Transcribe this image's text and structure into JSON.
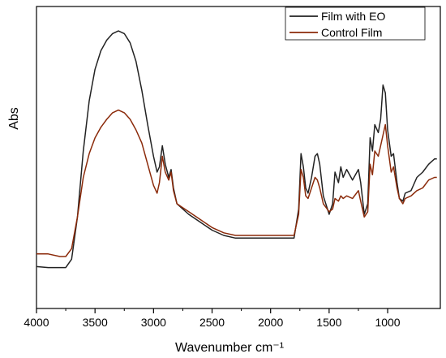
{
  "chart_data": {
    "type": "line",
    "title": "",
    "xlabel": "Wavenumber cm⁻¹",
    "ylabel": "Abs",
    "xlim": [
      4000,
      550
    ],
    "ylim": [
      0,
      1
    ],
    "x_reversed": true,
    "x_ticks": [
      4000,
      3500,
      3000,
      2500,
      2000,
      1500,
      1000
    ],
    "x_tick_labels": [
      "4000",
      "3500",
      "3000",
      "2500",
      "2000",
      "1500",
      "1000"
    ],
    "y_ticks_shown": false,
    "grid": false,
    "legend_position": "top-right",
    "series": [
      {
        "name": "Film with EO",
        "color": "#222222",
        "points": [
          [
            4000,
            0.082
          ],
          [
            3900,
            0.078
          ],
          [
            3800,
            0.078
          ],
          [
            3750,
            0.078
          ],
          [
            3700,
            0.11
          ],
          [
            3650,
            0.27
          ],
          [
            3600,
            0.52
          ],
          [
            3550,
            0.71
          ],
          [
            3500,
            0.83
          ],
          [
            3450,
            0.9
          ],
          [
            3400,
            0.94
          ],
          [
            3350,
            0.965
          ],
          [
            3300,
            0.975
          ],
          [
            3250,
            0.965
          ],
          [
            3200,
            0.93
          ],
          [
            3150,
            0.86
          ],
          [
            3100,
            0.75
          ],
          [
            3050,
            0.62
          ],
          [
            3000,
            0.5
          ],
          [
            2970,
            0.44
          ],
          [
            2950,
            0.46
          ],
          [
            2925,
            0.54
          ],
          [
            2900,
            0.47
          ],
          [
            2870,
            0.42
          ],
          [
            2850,
            0.45
          ],
          [
            2830,
            0.38
          ],
          [
            2800,
            0.32
          ],
          [
            2700,
            0.28
          ],
          [
            2600,
            0.25
          ],
          [
            2500,
            0.22
          ],
          [
            2400,
            0.2
          ],
          [
            2300,
            0.19
          ],
          [
            2200,
            0.19
          ],
          [
            2100,
            0.19
          ],
          [
            2000,
            0.19
          ],
          [
            1900,
            0.19
          ],
          [
            1800,
            0.19
          ],
          [
            1760,
            0.3
          ],
          [
            1740,
            0.51
          ],
          [
            1720,
            0.46
          ],
          [
            1700,
            0.38
          ],
          [
            1680,
            0.36
          ],
          [
            1650,
            0.42
          ],
          [
            1620,
            0.5
          ],
          [
            1600,
            0.51
          ],
          [
            1580,
            0.47
          ],
          [
            1550,
            0.35
          ],
          [
            1500,
            0.28
          ],
          [
            1470,
            0.32
          ],
          [
            1450,
            0.44
          ],
          [
            1420,
            0.4
          ],
          [
            1400,
            0.46
          ],
          [
            1380,
            0.42
          ],
          [
            1350,
            0.45
          ],
          [
            1300,
            0.41
          ],
          [
            1250,
            0.45
          ],
          [
            1230,
            0.4
          ],
          [
            1200,
            0.28
          ],
          [
            1170,
            0.32
          ],
          [
            1150,
            0.57
          ],
          [
            1130,
            0.52
          ],
          [
            1110,
            0.62
          ],
          [
            1080,
            0.59
          ],
          [
            1060,
            0.64
          ],
          [
            1040,
            0.77
          ],
          [
            1020,
            0.74
          ],
          [
            1000,
            0.6
          ],
          [
            970,
            0.5
          ],
          [
            950,
            0.51
          ],
          [
            920,
            0.4
          ],
          [
            900,
            0.34
          ],
          [
            870,
            0.33
          ],
          [
            850,
            0.36
          ],
          [
            800,
            0.37
          ],
          [
            750,
            0.42
          ],
          [
            700,
            0.44
          ],
          [
            650,
            0.47
          ],
          [
            600,
            0.49
          ],
          [
            580,
            0.49
          ]
        ]
      },
      {
        "name": "Control Film",
        "color": "#8b2a0a",
        "points": [
          [
            4000,
            0.13
          ],
          [
            3900,
            0.13
          ],
          [
            3800,
            0.12
          ],
          [
            3750,
            0.12
          ],
          [
            3700,
            0.15
          ],
          [
            3650,
            0.27
          ],
          [
            3600,
            0.42
          ],
          [
            3550,
            0.51
          ],
          [
            3500,
            0.57
          ],
          [
            3450,
            0.61
          ],
          [
            3400,
            0.64
          ],
          [
            3350,
            0.665
          ],
          [
            3300,
            0.675
          ],
          [
            3250,
            0.665
          ],
          [
            3200,
            0.64
          ],
          [
            3150,
            0.6
          ],
          [
            3100,
            0.55
          ],
          [
            3050,
            0.47
          ],
          [
            3000,
            0.39
          ],
          [
            2970,
            0.36
          ],
          [
            2950,
            0.4
          ],
          [
            2925,
            0.5
          ],
          [
            2900,
            0.44
          ],
          [
            2870,
            0.41
          ],
          [
            2850,
            0.44
          ],
          [
            2830,
            0.37
          ],
          [
            2800,
            0.32
          ],
          [
            2700,
            0.29
          ],
          [
            2600,
            0.26
          ],
          [
            2500,
            0.23
          ],
          [
            2400,
            0.21
          ],
          [
            2300,
            0.2
          ],
          [
            2200,
            0.2
          ],
          [
            2100,
            0.2
          ],
          [
            2000,
            0.2
          ],
          [
            1900,
            0.2
          ],
          [
            1800,
            0.2
          ],
          [
            1760,
            0.28
          ],
          [
            1740,
            0.45
          ],
          [
            1720,
            0.42
          ],
          [
            1700,
            0.35
          ],
          [
            1680,
            0.34
          ],
          [
            1650,
            0.38
          ],
          [
            1620,
            0.42
          ],
          [
            1600,
            0.41
          ],
          [
            1580,
            0.38
          ],
          [
            1550,
            0.32
          ],
          [
            1500,
            0.29
          ],
          [
            1470,
            0.3
          ],
          [
            1450,
            0.34
          ],
          [
            1420,
            0.33
          ],
          [
            1400,
            0.35
          ],
          [
            1380,
            0.34
          ],
          [
            1350,
            0.35
          ],
          [
            1300,
            0.34
          ],
          [
            1250,
            0.37
          ],
          [
            1230,
            0.33
          ],
          [
            1200,
            0.27
          ],
          [
            1170,
            0.29
          ],
          [
            1150,
            0.47
          ],
          [
            1130,
            0.43
          ],
          [
            1110,
            0.52
          ],
          [
            1080,
            0.5
          ],
          [
            1060,
            0.54
          ],
          [
            1040,
            0.58
          ],
          [
            1020,
            0.62
          ],
          [
            1000,
            0.54
          ],
          [
            970,
            0.44
          ],
          [
            950,
            0.46
          ],
          [
            920,
            0.38
          ],
          [
            900,
            0.34
          ],
          [
            870,
            0.32
          ],
          [
            850,
            0.34
          ],
          [
            800,
            0.35
          ],
          [
            750,
            0.37
          ],
          [
            700,
            0.38
          ],
          [
            650,
            0.41
          ],
          [
            600,
            0.42
          ],
          [
            580,
            0.42
          ]
        ]
      }
    ]
  }
}
